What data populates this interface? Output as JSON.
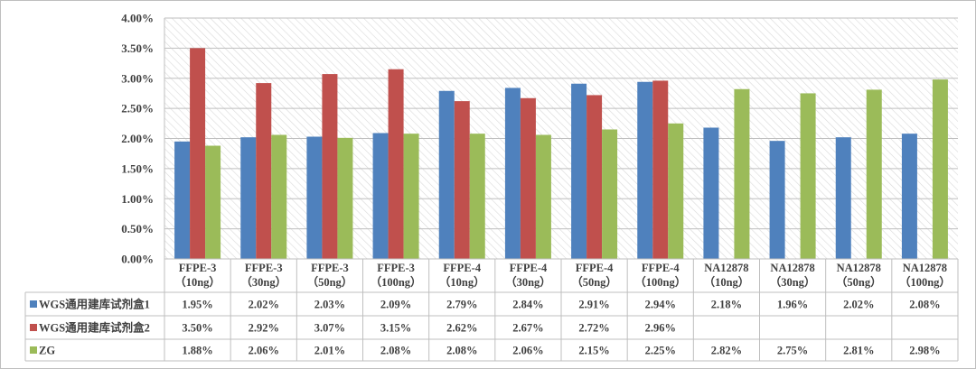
{
  "chart_data": {
    "type": "bar",
    "ylim": [
      0,
      4
    ],
    "y_ticks": [
      "0.00%",
      "0.50%",
      "1.00%",
      "1.50%",
      "2.00%",
      "2.50%",
      "3.00%",
      "3.50%",
      "4.00%"
    ],
    "categories": [
      [
        "FFPE-3",
        "（10ng）"
      ],
      [
        "FFPE-3",
        "（30ng）"
      ],
      [
        "FFPE-3",
        "（50ng）"
      ],
      [
        "FFPE-3",
        "（100ng）"
      ],
      [
        "FFPE-4",
        "（10ng）"
      ],
      [
        "FFPE-4",
        "（30ng）"
      ],
      [
        "FFPE-4",
        "（50ng）"
      ],
      [
        "FFPE-4",
        "（100ng）"
      ],
      [
        "NA12878",
        "（10ng）"
      ],
      [
        "NA12878",
        "（30ng）"
      ],
      [
        "NA12878",
        "（50ng）"
      ],
      [
        "NA12878",
        "（100ng）"
      ]
    ],
    "series": [
      {
        "name": "WGS通用建库试剂盒1",
        "color": "#4f81bd",
        "values": [
          1.95,
          2.02,
          2.03,
          2.09,
          2.79,
          2.84,
          2.91,
          2.94,
          2.18,
          1.96,
          2.02,
          2.08
        ],
        "labels": [
          "1.95%",
          "2.02%",
          "2.03%",
          "2.09%",
          "2.79%",
          "2.84%",
          "2.91%",
          "2.94%",
          "2.18%",
          "1.96%",
          "2.02%",
          "2.08%"
        ]
      },
      {
        "name": "WGS通用建库试剂盒2",
        "color": "#c0504d",
        "values": [
          3.5,
          2.92,
          3.07,
          3.15,
          2.62,
          2.67,
          2.72,
          2.96,
          null,
          null,
          null,
          null
        ],
        "labels": [
          "3.50%",
          "2.92%",
          "3.07%",
          "3.15%",
          "2.62%",
          "2.67%",
          "2.72%",
          "2.96%",
          "",
          "",
          "",
          ""
        ]
      },
      {
        "name": "ZG",
        "color": "#9bbb59",
        "values": [
          1.88,
          2.06,
          2.01,
          2.08,
          2.08,
          2.06,
          2.15,
          2.25,
          2.82,
          2.75,
          2.81,
          2.98
        ],
        "labels": [
          "1.88%",
          "2.06%",
          "2.01%",
          "2.08%",
          "2.08%",
          "2.06%",
          "2.15%",
          "2.25%",
          "2.82%",
          "2.75%",
          "2.81%",
          "2.98%"
        ]
      }
    ],
    "grid": true,
    "legend": "data-table"
  }
}
